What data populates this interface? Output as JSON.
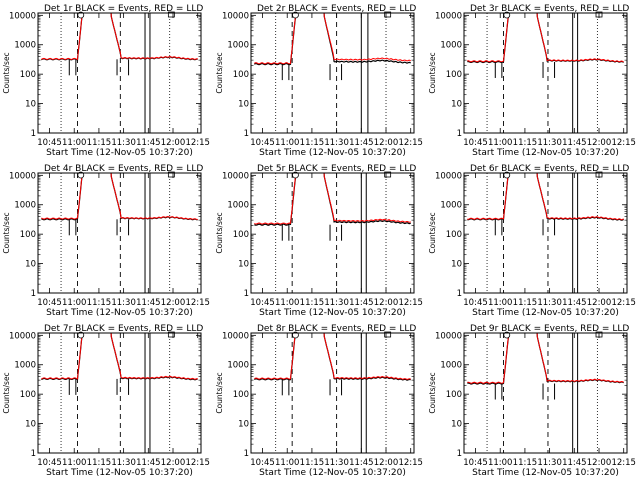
{
  "chart_data": {
    "type": "line",
    "xlabel": "Start Time (12-Nov-05 10:37:20)",
    "ylabel": "Counts/sec",
    "x_tick_labels": [
      "10:45",
      "11:00",
      "11:15",
      "11:30",
      "11:45",
      "12:00",
      "12:15"
    ],
    "x_ticks_min": [
      45,
      60,
      75,
      90,
      105,
      120,
      135
    ],
    "xlim_min": [
      38,
      137
    ],
    "y_scale": "log",
    "ylim": [
      1,
      12000
    ],
    "y_tick_labels": [
      "1",
      "10",
      "100",
      "1000",
      "10000"
    ],
    "y_ticks": [
      1,
      10,
      100,
      1000,
      10000
    ],
    "series_colors": {
      "events": "#000000",
      "lld": "#ff0000"
    },
    "panels": [
      {
        "title": "Det 1r BLACK = Events, RED = LLD",
        "base_events": 320,
        "base_lld": 330,
        "post_events": 350,
        "post_lld": 360,
        "solid_lines_min": [
          103,
          106
        ],
        "dashed_lines_min": [
          62,
          88
        ],
        "dotted_lines_min": [
          52,
          118
        ],
        "circle_min": 64,
        "square_min": 119
      },
      {
        "title": "Det 2r BLACK = Events, RED = LLD",
        "base_events": 220,
        "base_lld": 235,
        "post_events": 270,
        "post_lld": 320,
        "solid_lines_min": [
          105,
          109
        ],
        "dashed_lines_min": [
          63,
          90
        ],
        "dotted_lines_min": [
          53,
          120
        ],
        "circle_min": 65,
        "square_min": 121
      },
      {
        "title": "Det 3r BLACK = Events, RED = LLD",
        "base_events": 260,
        "base_lld": 275,
        "post_events": 290,
        "post_lld": 300,
        "solid_lines_min": [
          104,
          107
        ],
        "dashed_lines_min": [
          62,
          89
        ],
        "dotted_lines_min": [
          52,
          119
        ],
        "circle_min": 64,
        "square_min": 120
      },
      {
        "title": "Det 4r BLACK = Events, RED = LLD",
        "base_events": 320,
        "base_lld": 340,
        "post_events": 350,
        "post_lld": 360,
        "solid_lines_min": [
          103,
          106
        ],
        "dashed_lines_min": [
          62,
          88
        ],
        "dotted_lines_min": [
          52,
          118
        ],
        "circle_min": 64,
        "square_min": 119
      },
      {
        "title": "Det 5r BLACK = Events, RED = LLD",
        "base_events": 210,
        "base_lld": 230,
        "post_events": 260,
        "post_lld": 290,
        "solid_lines_min": [
          105,
          108
        ],
        "dashed_lines_min": [
          63,
          90
        ],
        "dotted_lines_min": [
          53,
          120
        ],
        "circle_min": 65,
        "square_min": 121
      },
      {
        "title": "Det 6r BLACK = Events, RED = LLD",
        "base_events": 320,
        "base_lld": 335,
        "post_events": 340,
        "post_lld": 355,
        "solid_lines_min": [
          104,
          107
        ],
        "dashed_lines_min": [
          62,
          89
        ],
        "dotted_lines_min": [
          52,
          119
        ],
        "circle_min": 64,
        "square_min": 120
      },
      {
        "title": "Det 7r BLACK = Events, RED = LLD",
        "base_events": 330,
        "base_lld": 345,
        "post_events": 350,
        "post_lld": 365,
        "solid_lines_min": [
          103,
          106
        ],
        "dashed_lines_min": [
          62,
          88
        ],
        "dotted_lines_min": [
          52,
          118
        ],
        "circle_min": 64,
        "square_min": 119
      },
      {
        "title": "Det 8r BLACK = Events, RED = LLD",
        "base_events": 320,
        "base_lld": 340,
        "post_events": 340,
        "post_lld": 360,
        "solid_lines_min": [
          105,
          108
        ],
        "dashed_lines_min": [
          63,
          90
        ],
        "dotted_lines_min": [
          53,
          120
        ],
        "circle_min": 65,
        "square_min": 121
      },
      {
        "title": "Det 9r BLACK = Events, RED = LLD",
        "base_events": 230,
        "base_lld": 245,
        "post_events": 280,
        "post_lld": 290,
        "solid_lines_min": [
          104,
          107
        ],
        "dashed_lines_min": [
          62,
          89
        ],
        "dotted_lines_min": [
          52,
          119
        ],
        "circle_min": 64,
        "square_min": 120
      }
    ]
  }
}
